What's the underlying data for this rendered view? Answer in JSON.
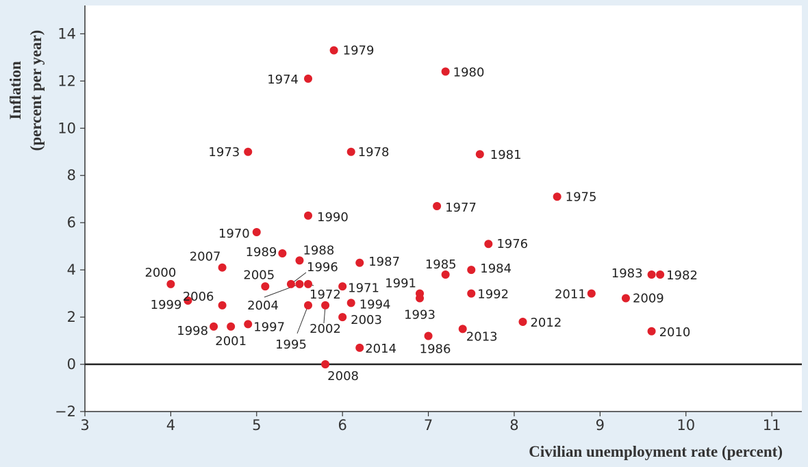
{
  "chart_data": {
    "type": "scatter",
    "title": "",
    "xlabel": "Civilian unemployment rate (percent)",
    "ylabel_lines": [
      "Inflation",
      "(percent per year)"
    ],
    "xlim": [
      3,
      11.35
    ],
    "ylim": [
      -2,
      15.2
    ],
    "xticks": [
      3,
      4,
      5,
      6,
      7,
      8,
      9,
      10,
      11
    ],
    "yticks": [
      -2,
      0,
      2,
      4,
      6,
      8,
      10,
      12,
      14
    ],
    "tick_labels_y": [
      "−2",
      "0",
      "2",
      "4",
      "6",
      "8",
      "10",
      "12",
      "14"
    ],
    "grid": false,
    "zero_line": true,
    "point_color": "#e0202b",
    "points": [
      {
        "label": "1970",
        "x": 5.0,
        "y": 5.6
      },
      {
        "label": "1971",
        "x": 6.0,
        "y": 3.3
      },
      {
        "label": "1972",
        "x": 5.6,
        "y": 3.4
      },
      {
        "label": "1973",
        "x": 4.9,
        "y": 9.0
      },
      {
        "label": "1974",
        "x": 5.6,
        "y": 12.1
      },
      {
        "label": "1975",
        "x": 8.5,
        "y": 7.1
      },
      {
        "label": "1976",
        "x": 7.7,
        "y": 5.1
      },
      {
        "label": "1977",
        "x": 7.1,
        "y": 6.7
      },
      {
        "label": "1978",
        "x": 6.1,
        "y": 9.0
      },
      {
        "label": "1979",
        "x": 5.9,
        "y": 13.3
      },
      {
        "label": "1980",
        "x": 7.2,
        "y": 12.4
      },
      {
        "label": "1981",
        "x": 7.6,
        "y": 8.9
      },
      {
        "label": "1982",
        "x": 9.7,
        "y": 3.8
      },
      {
        "label": "1983",
        "x": 9.6,
        "y": 3.8
      },
      {
        "label": "1984",
        "x": 7.5,
        "y": 4.0
      },
      {
        "label": "1985",
        "x": 7.2,
        "y": 3.8
      },
      {
        "label": "1986",
        "x": 7.0,
        "y": 1.2
      },
      {
        "label": "1987",
        "x": 6.2,
        "y": 4.3
      },
      {
        "label": "1988",
        "x": 5.5,
        "y": 4.4
      },
      {
        "label": "1989",
        "x": 5.3,
        "y": 4.7
      },
      {
        "label": "1990",
        "x": 5.6,
        "y": 6.3
      },
      {
        "label": "1991",
        "x": 6.9,
        "y": 3.0
      },
      {
        "label": "1992",
        "x": 7.5,
        "y": 3.0
      },
      {
        "label": "1993",
        "x": 6.9,
        "y": 2.8
      },
      {
        "label": "1994",
        "x": 6.1,
        "y": 2.6
      },
      {
        "label": "1995",
        "x": 5.6,
        "y": 2.5
      },
      {
        "label": "1996",
        "x": 5.4,
        "y": 3.4
      },
      {
        "label": "1997",
        "x": 4.9,
        "y": 1.7
      },
      {
        "label": "1998",
        "x": 4.5,
        "y": 1.6
      },
      {
        "label": "1999",
        "x": 4.2,
        "y": 2.7
      },
      {
        "label": "2000",
        "x": 4.0,
        "y": 3.4
      },
      {
        "label": "2001",
        "x": 4.7,
        "y": 1.6
      },
      {
        "label": "2002",
        "x": 5.8,
        "y": 2.5
      },
      {
        "label": "2003",
        "x": 6.0,
        "y": 2.0
      },
      {
        "label": "2004",
        "x": 5.5,
        "y": 3.4
      },
      {
        "label": "2005",
        "x": 5.1,
        "y": 3.3
      },
      {
        "label": "2006",
        "x": 4.6,
        "y": 2.5
      },
      {
        "label": "2007",
        "x": 4.6,
        "y": 4.1
      },
      {
        "label": "2008",
        "x": 5.8,
        "y": 0.0
      },
      {
        "label": "2009",
        "x": 9.3,
        "y": 2.8
      },
      {
        "label": "2010",
        "x": 9.6,
        "y": 1.4
      },
      {
        "label": "2011",
        "x": 8.9,
        "y": 3.0
      },
      {
        "label": "2012",
        "x": 8.1,
        "y": 1.8
      },
      {
        "label": "2013",
        "x": 7.4,
        "y": 1.5
      },
      {
        "label": "2014",
        "x": 6.2,
        "y": 0.7
      }
    ]
  }
}
